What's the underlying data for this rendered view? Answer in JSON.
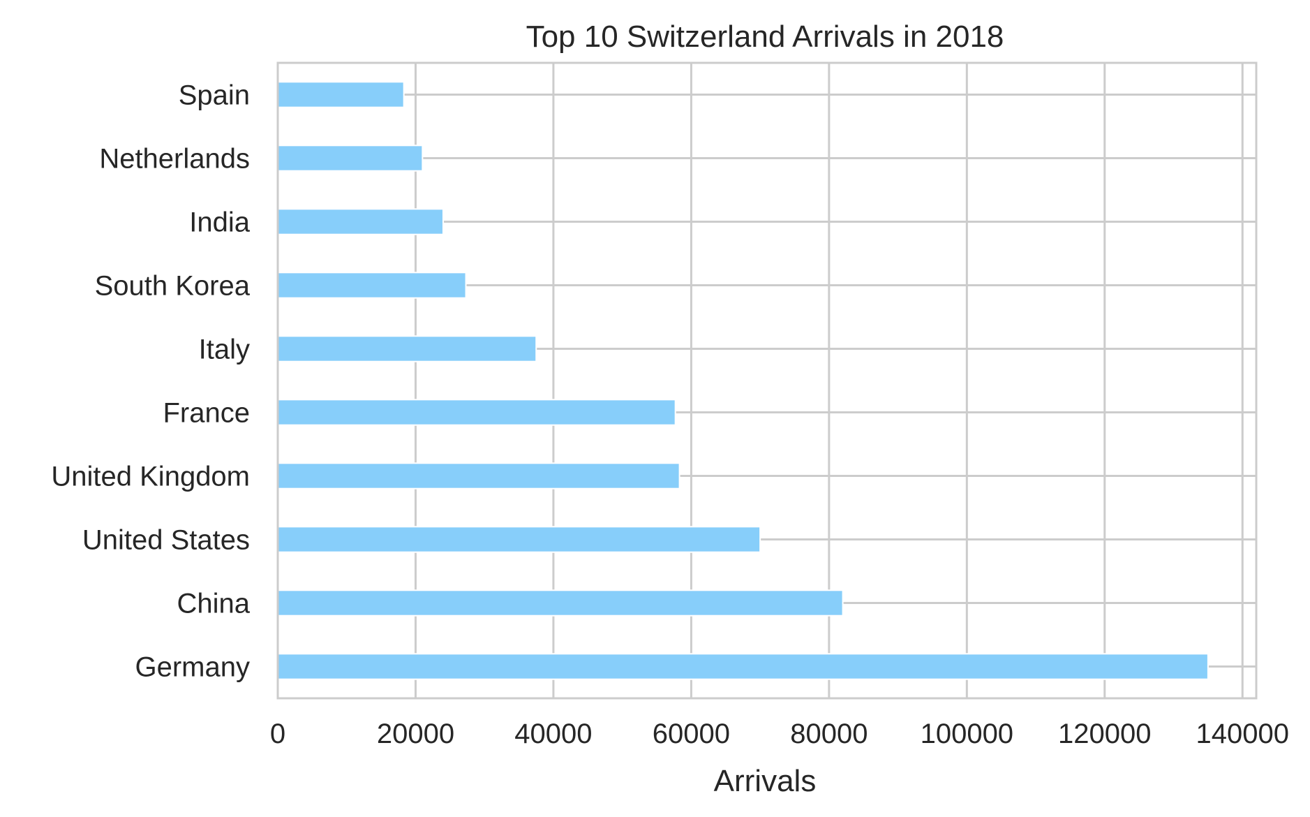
{
  "chart_data": {
    "type": "bar",
    "orientation": "horizontal",
    "title": "Top 10 Switzerland Arrivals in 2018",
    "xlabel": "Arrivals",
    "ylabel": "",
    "categories": [
      "Germany",
      "China",
      "United States",
      "United Kingdom",
      "France",
      "Italy",
      "South Korea",
      "India",
      "Netherlands",
      "Spain"
    ],
    "values": [
      135000,
      82000,
      70000,
      58300,
      57700,
      37500,
      27300,
      24000,
      21000,
      18300
    ],
    "xlim": [
      0,
      142000
    ],
    "xticks": [
      "0",
      "20000",
      "40000",
      "60000",
      "80000",
      "100000",
      "120000",
      "140000"
    ],
    "grid": true,
    "bar_color": "#87cefa",
    "grid_color": "#cccccc"
  }
}
